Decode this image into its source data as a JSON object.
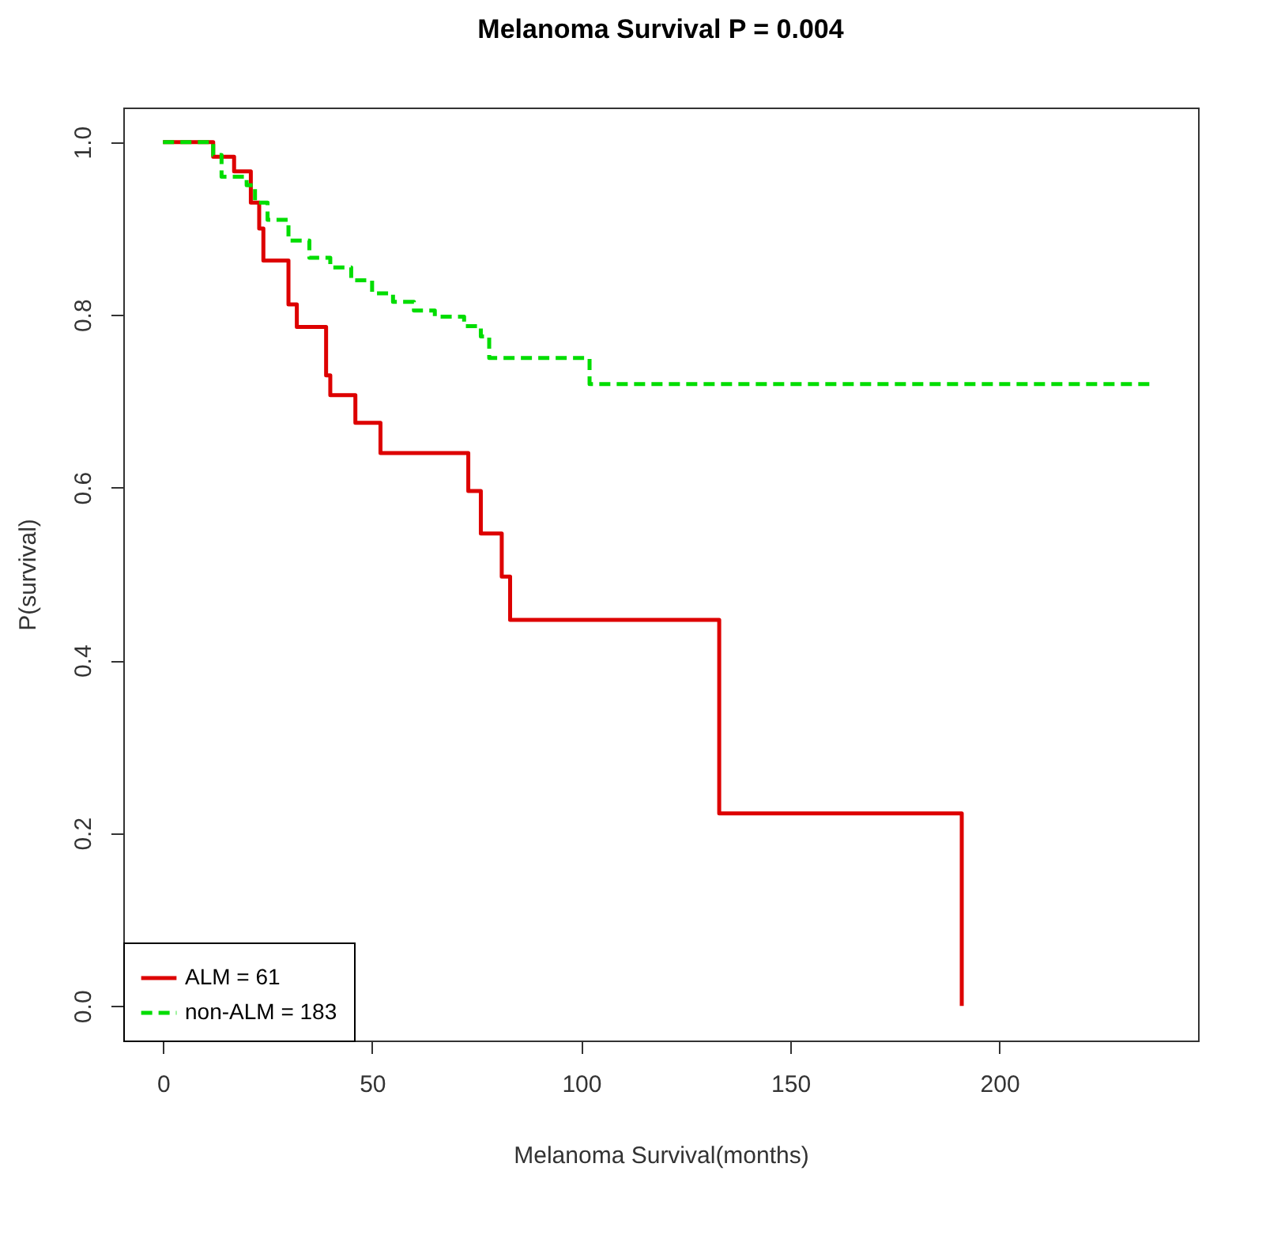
{
  "chart_data": {
    "type": "step",
    "title": "Melanoma Survival P = 0.004",
    "xlabel": "Melanoma Survival(months)",
    "ylabel": "P(survival)",
    "xlim": [
      -9.5,
      247.5
    ],
    "ylim": [
      -0.04,
      1.04
    ],
    "xticks": [
      0,
      50,
      100,
      150,
      200
    ],
    "yticks": [
      {
        "value": 0,
        "label": "0.0"
      },
      {
        "value": 0.2,
        "label": "0.2"
      },
      {
        "value": 0.4,
        "label": "0.4"
      },
      {
        "value": 0.6,
        "label": "0.6"
      },
      {
        "value": 0.8,
        "label": "0.8"
      },
      {
        "value": 1,
        "label": "1.0"
      }
    ],
    "grid": false,
    "legend": "bottom left",
    "series": [
      {
        "name": "ALM = 61",
        "color": "#dd0000",
        "line_style": "solid",
        "x": [
          0,
          12,
          17,
          21,
          23,
          24,
          30,
          32,
          39,
          40,
          46,
          52,
          73,
          76,
          81,
          83,
          133,
          191
        ],
        "values": [
          1.0,
          0.983,
          0.966,
          0.93,
          0.9,
          0.863,
          0.812,
          0.786,
          0.73,
          0.707,
          0.675,
          0.64,
          0.596,
          0.547,
          0.497,
          0.447,
          0.223,
          0
        ]
      },
      {
        "name": "non-ALM = 183",
        "color": "#00dd00",
        "line_style": "dashed",
        "x": [
          0,
          12,
          14,
          20,
          22,
          25,
          30,
          35,
          40,
          45,
          50,
          55,
          60,
          65,
          72,
          76,
          78,
          102,
          237
        ],
        "values": [
          1.0,
          0.985,
          0.96,
          0.95,
          0.93,
          0.91,
          0.886,
          0.866,
          0.855,
          0.84,
          0.825,
          0.815,
          0.805,
          0.798,
          0.787,
          0.775,
          0.75,
          0.72,
          0.72
        ]
      }
    ]
  }
}
